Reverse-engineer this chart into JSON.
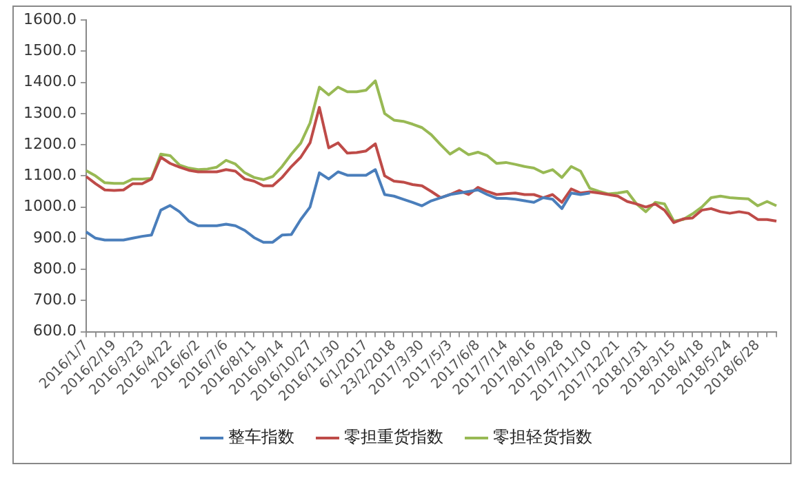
{
  "chart_data": {
    "type": "line",
    "categories": [
      "2016/1/7",
      null,
      null,
      "2016/2/19",
      null,
      null,
      "2016/3/23",
      null,
      null,
      "2016/4/22",
      null,
      null,
      "2016/6/2",
      null,
      null,
      "2016/7/6",
      null,
      null,
      "2016/8/11",
      null,
      null,
      "2016/9/14",
      null,
      null,
      "2016/10/27",
      null,
      null,
      "2016/11/30",
      null,
      null,
      "6/1/2017",
      null,
      null,
      "23/2/2018",
      null,
      null,
      "2017/3/30",
      null,
      null,
      "2017/5/3",
      null,
      null,
      "2017/6/8",
      null,
      null,
      "2017/7/14",
      null,
      null,
      "2017/8/16",
      null,
      null,
      "2017/9/28",
      null,
      null,
      "2017/11/10",
      null,
      null,
      "2017/12/21",
      null,
      null,
      "2018/1/31",
      null,
      null,
      "2018/3/15",
      null,
      null,
      "2018/4/18",
      null,
      null,
      "2018/5/24",
      null,
      null,
      "2018/6/28",
      null,
      null
    ],
    "series": [
      {
        "name": "整车指数",
        "color": "#4a7ebb",
        "values": [
          920,
          900,
          894,
          894,
          894,
          900,
          906,
          910,
          990,
          1005,
          985,
          955,
          940,
          940,
          940,
          945,
          940,
          925,
          902,
          887,
          887,
          910,
          912,
          960,
          1000,
          1110,
          1090,
          1113,
          1102,
          1102,
          1102,
          1120,
          1040,
          1035,
          1025,
          1015,
          1004,
          1020,
          1030,
          1040,
          1045,
          1050,
          1055,
          1040,
          1028,
          1028,
          1025,
          1020,
          1015,
          1030,
          1025,
          995,
          1045,
          1040,
          1045,
          null,
          null,
          null,
          null,
          null,
          null,
          null,
          null,
          null,
          null,
          null,
          null,
          null,
          null,
          null,
          null,
          null,
          null,
          null,
          null
        ]
      },
      {
        "name": "零担重货指数",
        "color": "#be4b48",
        "values": [
          1098,
          1075,
          1055,
          1053,
          1055,
          1075,
          1075,
          1090,
          1160,
          1140,
          1128,
          1118,
          1113,
          1113,
          1113,
          1120,
          1115,
          1090,
          1083,
          1068,
          1068,
          1095,
          1130,
          1160,
          1206,
          1320,
          1190,
          1206,
          1173,
          1175,
          1180,
          1203,
          1100,
          1083,
          1080,
          1072,
          1068,
          1050,
          1030,
          1040,
          1053,
          1040,
          1063,
          1050,
          1040,
          1043,
          1045,
          1040,
          1040,
          1030,
          1040,
          1015,
          1058,
          1045,
          1049,
          1045,
          1040,
          1035,
          1018,
          1010,
          1000,
          1010,
          990,
          950,
          962,
          965,
          990,
          995,
          985,
          980,
          985,
          980,
          960,
          960,
          955
        ]
      },
      {
        "name": "零担轻货指数",
        "color": "#98b954",
        "values": [
          1117,
          1100,
          1078,
          1076,
          1076,
          1090,
          1090,
          1092,
          1170,
          1165,
          1135,
          1125,
          1120,
          1122,
          1128,
          1150,
          1138,
          1110,
          1095,
          1088,
          1098,
          1130,
          1170,
          1205,
          1270,
          1385,
          1360,
          1385,
          1370,
          1370,
          1375,
          1405,
          1300,
          1279,
          1275,
          1266,
          1255,
          1232,
          1200,
          1170,
          1188,
          1168,
          1176,
          1165,
          1140,
          1143,
          1137,
          1130,
          1125,
          1110,
          1120,
          1095,
          1130,
          1115,
          1060,
          1050,
          1042,
          1045,
          1050,
          1010,
          985,
          1015,
          1010,
          955,
          960,
          978,
          1000,
          1030,
          1035,
          1030,
          1028,
          1026,
          1004,
          1018,
          1004
        ]
      }
    ],
    "ylim": [
      600,
      1600
    ],
    "yticks": [
      {
        "value": 600,
        "label": "600.0"
      },
      {
        "value": 700,
        "label": "700.0"
      },
      {
        "value": 800,
        "label": "800.0"
      },
      {
        "value": 900,
        "label": "900.0"
      },
      {
        "value": 1000,
        "label": "1000.0"
      },
      {
        "value": 1100,
        "label": "1100.0"
      },
      {
        "value": 1200,
        "label": "1200.0"
      },
      {
        "value": 1300,
        "label": "1300.0"
      },
      {
        "value": 1400,
        "label": "1400.0"
      },
      {
        "value": 1500,
        "label": "1500.0"
      },
      {
        "value": 1600,
        "label": "1600.0"
      }
    ],
    "grid": false,
    "legend": "bottom",
    "marker": "none",
    "line_style": "solid"
  }
}
